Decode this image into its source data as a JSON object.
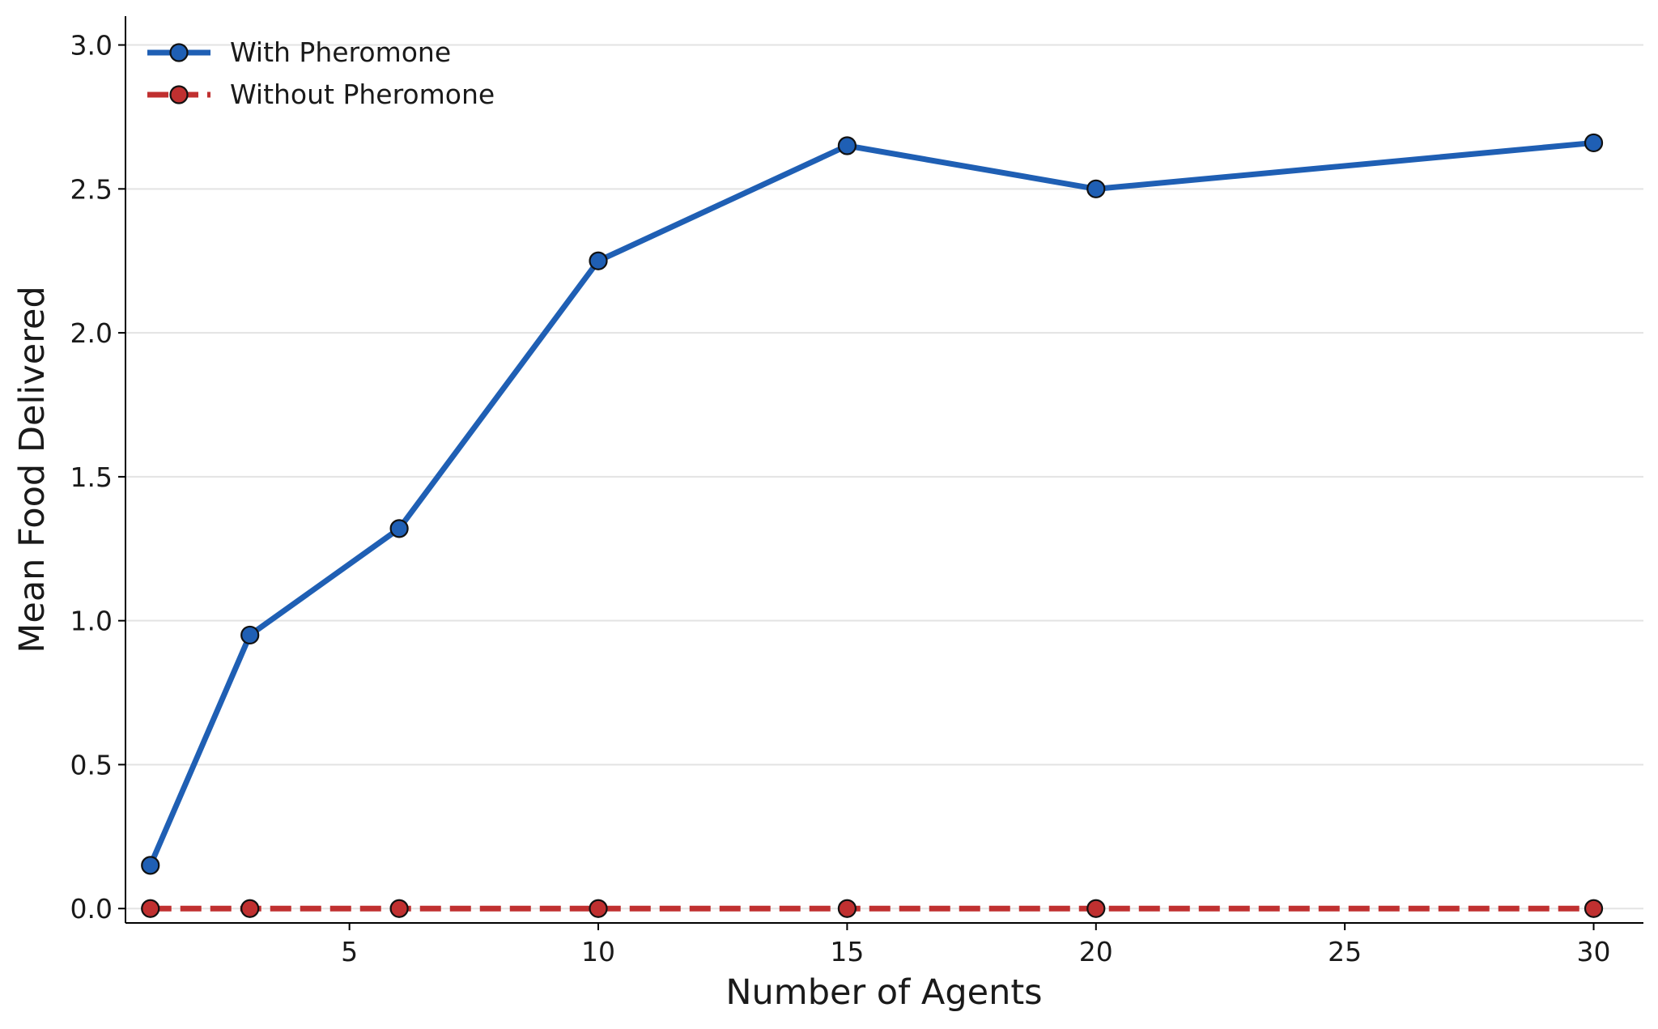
{
  "chart_data": {
    "type": "line",
    "title": "",
    "xlabel": "Number of Agents",
    "ylabel": "Mean Food Delivered",
    "x": [
      1,
      3,
      6,
      10,
      15,
      20,
      30
    ],
    "xlim": [
      0.5,
      31
    ],
    "ylim": [
      -0.05,
      3.1
    ],
    "xticks": [
      5,
      10,
      15,
      20,
      25,
      30
    ],
    "yticks": [
      0.0,
      0.5,
      1.0,
      1.5,
      2.0,
      2.5,
      3.0
    ],
    "xtick_labels": [
      "5",
      "10",
      "15",
      "20",
      "25",
      "30"
    ],
    "ytick_labels": [
      "0.0",
      "0.5",
      "1.0",
      "1.5",
      "2.0",
      "2.5",
      "3.0"
    ],
    "grid": "horizontal",
    "legend_position": "top-left",
    "series": [
      {
        "name": "With Pheromone",
        "values": [
          0.15,
          0.95,
          1.32,
          2.25,
          2.65,
          2.5,
          2.66
        ],
        "color": "#1f5fb4",
        "line_style": "solid",
        "marker": "circle"
      },
      {
        "name": "Without Pheromone",
        "values": [
          0.0,
          0.0,
          0.0,
          0.0,
          0.0,
          0.0,
          0.0
        ],
        "color": "#c03030",
        "line_style": "dashed",
        "marker": "circle"
      }
    ]
  }
}
